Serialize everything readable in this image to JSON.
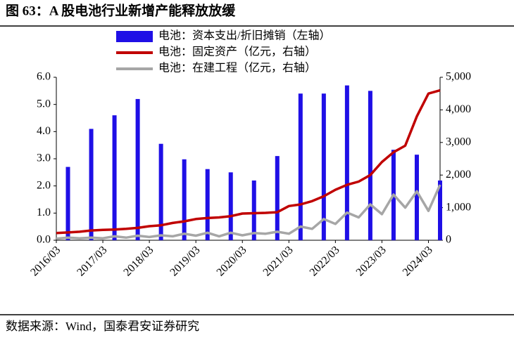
{
  "chart_data": {
    "type": "bar-line",
    "title": "图 63：A 股电池行业新增产能释放放缓",
    "source": "数据来源：Wind，国泰君安证券研究",
    "categories": [
      "2016/03",
      null,
      null,
      null,
      "2017/03",
      null,
      null,
      null,
      "2018/03",
      null,
      null,
      null,
      "2019/03",
      null,
      null,
      null,
      "2020/03",
      null,
      null,
      null,
      "2021/03",
      null,
      null,
      null,
      "2022/03",
      null,
      null,
      null,
      "2023/03",
      null,
      null,
      null,
      "2024/03",
      null
    ],
    "series": [
      {
        "name": "电池：资本支出/折旧摊销（左轴）",
        "color": "#1f0fe6",
        "kind": "bar",
        "axis": "y",
        "values": [
          null,
          2.7,
          null,
          4.1,
          null,
          4.6,
          null,
          5.2,
          null,
          3.55,
          null,
          2.98,
          null,
          2.62,
          null,
          2.5,
          null,
          2.2,
          null,
          3.1,
          null,
          5.4,
          null,
          5.4,
          null,
          5.7,
          null,
          5.5,
          null,
          3.33,
          null,
          3.15,
          null,
          2.2
        ]
      },
      {
        "name": "电池：固定资产（亿元，右轴）",
        "color": "#c00000",
        "kind": "line",
        "axis": "y2",
        "values": [
          220,
          240,
          260,
          300,
          320,
          330,
          350,
          380,
          430,
          460,
          530,
          580,
          650,
          680,
          700,
          740,
          820,
          830,
          840,
          860,
          1050,
          1100,
          1200,
          1350,
          1550,
          1700,
          1800,
          2000,
          2400,
          2700,
          2900,
          3800,
          4500,
          4600
        ]
      },
      {
        "name": "电池：在建工程（亿元，右轴）",
        "color": "#a6a6a6",
        "kind": "line",
        "axis": "y2",
        "values": [
          50,
          80,
          60,
          80,
          60,
          120,
          80,
          140,
          100,
          150,
          120,
          200,
          140,
          230,
          120,
          230,
          150,
          220,
          200,
          260,
          200,
          420,
          350,
          650,
          500,
          850,
          700,
          1100,
          800,
          1400,
          1000,
          1500,
          900,
          1700
        ]
      }
    ],
    "ylim": [
      0,
      6
    ],
    "yticks": [
      {
        "value": 0,
        "label": "0.0"
      },
      {
        "value": 1,
        "label": "1.0"
      },
      {
        "value": 2,
        "label": "2.0"
      },
      {
        "value": 3,
        "label": "3.0"
      },
      {
        "value": 4,
        "label": "4.0"
      },
      {
        "value": 5,
        "label": "5.0"
      },
      {
        "value": 6,
        "label": "6.0"
      }
    ],
    "y2lim": [
      0,
      5000
    ],
    "y2ticks": [
      0,
      {
        "value": 1000,
        "label": "1,000"
      },
      {
        "value": 2000,
        "label": "2,000"
      },
      {
        "value": 3000,
        "label": "3,000"
      },
      {
        "value": 4000,
        "label": "4,000"
      },
      {
        "value": 5000,
        "label": "5,000"
      }
    ]
  }
}
